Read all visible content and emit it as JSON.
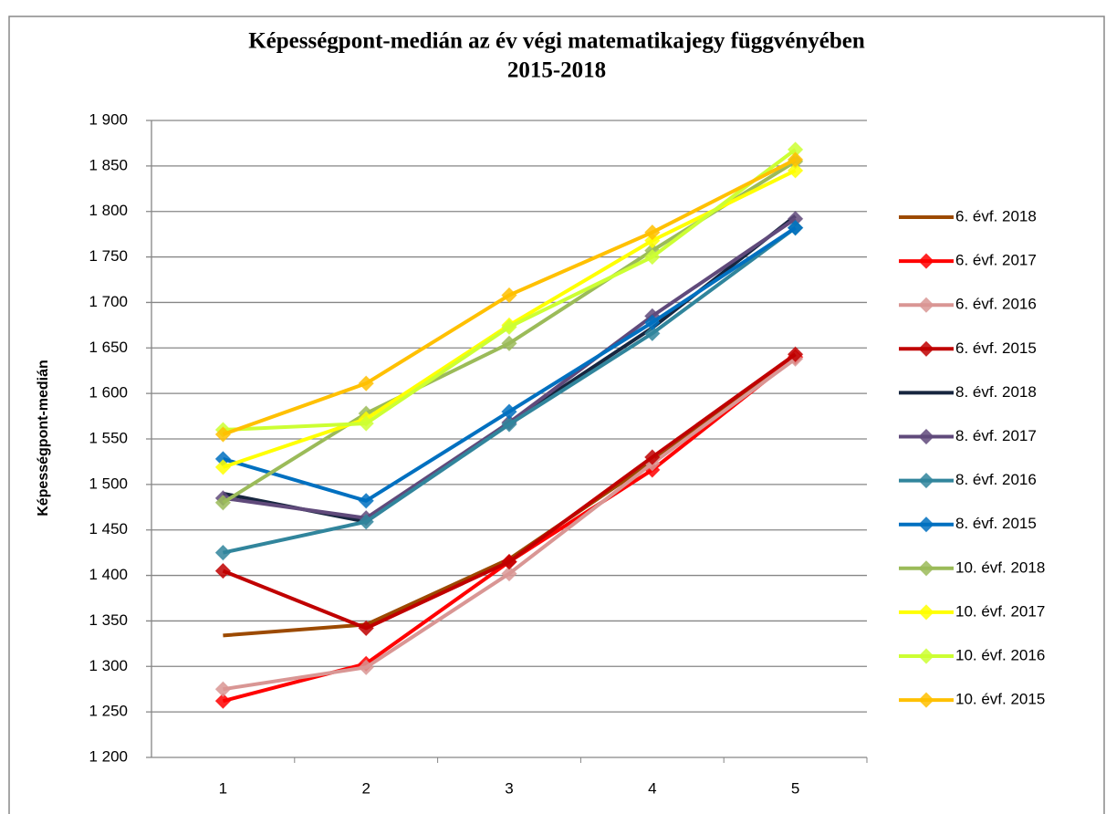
{
  "chart_data": {
    "type": "line",
    "title": [
      "Képességpont-medián az év végi matematikajegy függvényében",
      "2015-2018"
    ],
    "y_label": "Képességpont-medián",
    "categories": [
      "1",
      "2",
      "3",
      "4",
      "5"
    ],
    "ylim": [
      1200,
      1900
    ],
    "yticks": [
      {
        "value": 1200,
        "label": "1 200"
      },
      {
        "value": 1250,
        "label": "1 250"
      },
      {
        "value": 1300,
        "label": "1 300"
      },
      {
        "value": 1350,
        "label": "1 350"
      },
      {
        "value": 1400,
        "label": "1 400"
      },
      {
        "value": 1450,
        "label": "1 450"
      },
      {
        "value": 1500,
        "label": "1 500"
      },
      {
        "value": 1550,
        "label": "1 550"
      },
      {
        "value": 1600,
        "label": "1 600"
      },
      {
        "value": 1650,
        "label": "1 650"
      },
      {
        "value": 1700,
        "label": "1 700"
      },
      {
        "value": 1750,
        "label": "1 750"
      },
      {
        "value": 1800,
        "label": "1 800"
      },
      {
        "value": 1850,
        "label": "1 850"
      },
      {
        "value": 1900,
        "label": "1 900"
      }
    ],
    "grid": true,
    "legend": "right",
    "series": [
      {
        "name": "6. évf. 2018",
        "color": "#9C4A00",
        "marker": "none",
        "values": [
          1334,
          1346,
          1418,
          1525,
          1640
        ]
      },
      {
        "name": "6. évf. 2017",
        "color": "#FF0000",
        "marker": "diamond",
        "values": [
          1262,
          1303,
          1415,
          1516,
          1640
        ]
      },
      {
        "name": "6. évf. 2016",
        "color": "#D99694",
        "marker": "diamond",
        "values": [
          1275,
          1299,
          1402,
          1523,
          1638
        ]
      },
      {
        "name": "6. évf. 2015",
        "color": "#C00000",
        "marker": "diamond",
        "values": [
          1405,
          1342,
          1415,
          1530,
          1643
        ]
      },
      {
        "name": "8. évf. 2018",
        "color": "#17263F",
        "marker": "none",
        "values": [
          1490,
          1459,
          1568,
          1672,
          1795
        ]
      },
      {
        "name": "8. évf. 2017",
        "color": "#604A7B",
        "marker": "diamond",
        "values": [
          1485,
          1463,
          1568,
          1685,
          1792
        ]
      },
      {
        "name": "8. évf. 2016",
        "color": "#31859C",
        "marker": "diamond",
        "values": [
          1425,
          1459,
          1566,
          1666,
          1782
        ]
      },
      {
        "name": "8. évf. 2015",
        "color": "#0070C0",
        "marker": "diamond",
        "values": [
          1528,
          1482,
          1580,
          1678,
          1782
        ]
      },
      {
        "name": "10. évf. 2018",
        "color": "#9BBB59",
        "marker": "diamond",
        "values": [
          1480,
          1578,
          1655,
          1757,
          1855
        ]
      },
      {
        "name": "10. évf. 2017",
        "color": "#FFFF00",
        "marker": "diamond",
        "values": [
          1519,
          1572,
          1675,
          1768,
          1845
        ]
      },
      {
        "name": "10. évf. 2016",
        "color": "#CCFF33",
        "marker": "diamond",
        "values": [
          1560,
          1567,
          1673,
          1750,
          1868
        ]
      },
      {
        "name": "10. évf. 2015",
        "color": "#FFC000",
        "marker": "diamond",
        "values": [
          1555,
          1611,
          1708,
          1777,
          1857
        ]
      }
    ]
  }
}
